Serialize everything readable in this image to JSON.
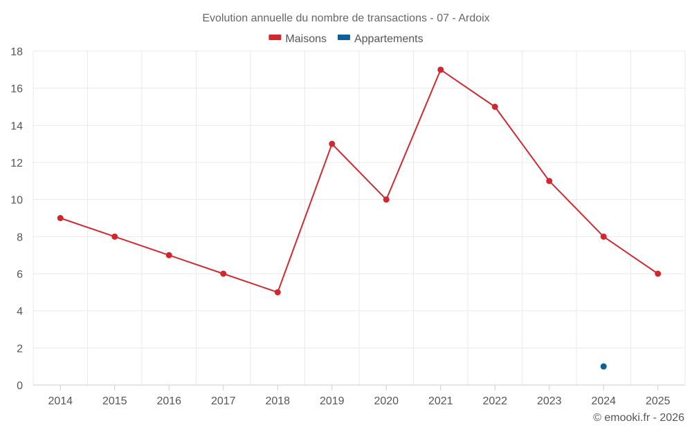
{
  "chart_data": {
    "type": "line",
    "title": "Evolution annuelle du nombre de transactions - 07 - Ardoix",
    "xlabel": "",
    "ylabel": "",
    "categories": [
      "2014",
      "2015",
      "2016",
      "2017",
      "2018",
      "2019",
      "2020",
      "2021",
      "2022",
      "2023",
      "2024",
      "2025"
    ],
    "ylim": [
      0,
      18
    ],
    "yticks": [
      0,
      2,
      4,
      6,
      8,
      10,
      12,
      14,
      16,
      18
    ],
    "grid": true,
    "legend_position": "top-center",
    "series": [
      {
        "name": "Maisons",
        "color": "#d0282e",
        "values": [
          9,
          8,
          7,
          6,
          5,
          13,
          10,
          17,
          15,
          11,
          8,
          6
        ]
      },
      {
        "name": "Appartements",
        "color": "#0e5e99",
        "values": [
          null,
          null,
          null,
          null,
          null,
          null,
          null,
          null,
          null,
          null,
          1,
          null
        ]
      }
    ]
  },
  "credit": "© emooki.fr - 2026"
}
